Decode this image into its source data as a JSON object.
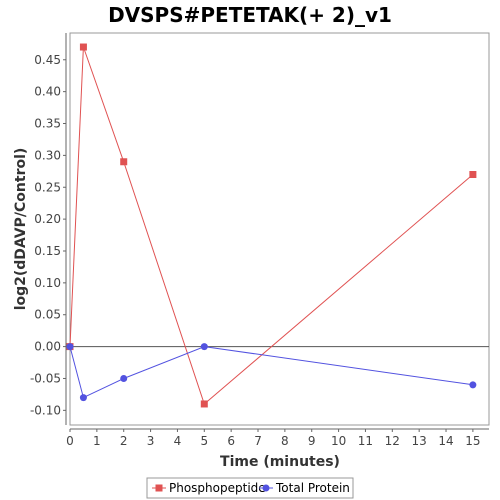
{
  "chart_data": {
    "type": "line",
    "title": "DVSPS#PETETAK(+ 2)_v1",
    "xlabel": "Time (minutes)",
    "ylabel": "log2(dDAVP/Control)",
    "xlim": [
      0,
      15.6
    ],
    "ylim": [
      -0.123,
      0.492
    ],
    "x_ticks": [
      0,
      1,
      2,
      3,
      4,
      5,
      6,
      7,
      8,
      9,
      10,
      11,
      12,
      13,
      14,
      15
    ],
    "y_ticks": [
      -0.1,
      -0.05,
      0.0,
      0.05,
      0.1,
      0.15,
      0.2,
      0.25,
      0.3,
      0.35,
      0.4,
      0.45
    ],
    "y_tick_labels": [
      "-0.10",
      "-0.05",
      "0.00",
      "0.05",
      "0.10",
      "0.15",
      "0.20",
      "0.25",
      "0.30",
      "0.35",
      "0.40",
      "0.45"
    ],
    "zero_line": true,
    "grid": false,
    "legend_position": "bottom-center",
    "series": [
      {
        "name": "Phosphopeptide",
        "color": "#e05252",
        "marker": "square",
        "x": [
          0,
          0.5,
          2,
          5,
          15
        ],
        "y": [
          0.0,
          0.47,
          0.29,
          -0.09,
          0.27
        ]
      },
      {
        "name": "Total Protein",
        "color": "#5252e0",
        "marker": "circle",
        "x": [
          0,
          0.5,
          2,
          5,
          15
        ],
        "y": [
          0.0,
          -0.08,
          -0.05,
          0.0,
          -0.06
        ]
      }
    ]
  }
}
